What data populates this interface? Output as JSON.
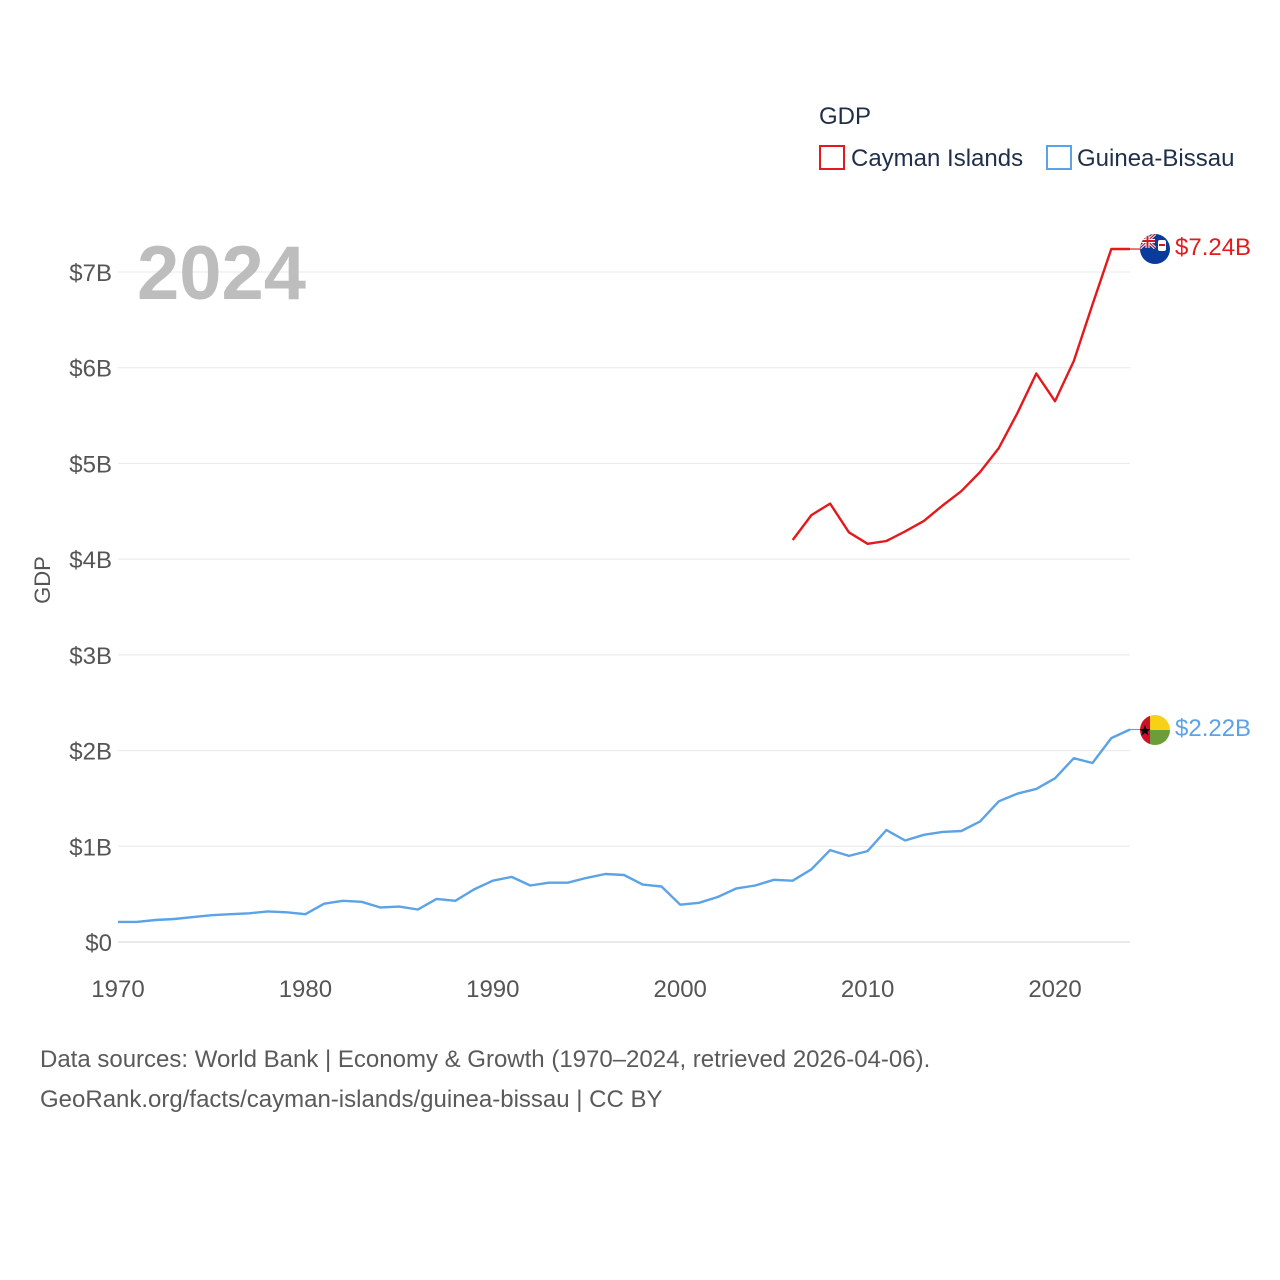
{
  "chart_data": {
    "type": "line",
    "title": "",
    "year_label": "2024",
    "xlabel": "",
    "ylabel": "GDP",
    "xlim": [
      1970,
      2024
    ],
    "ylim": [
      0,
      7.24
    ],
    "x_ticks": [
      1970,
      1980,
      1990,
      2000,
      2010,
      2020
    ],
    "x_tick_labels": [
      "1970",
      "1980",
      "1990",
      "2000",
      "2010",
      "2020"
    ],
    "y_ticks": [
      0,
      1,
      2,
      3,
      4,
      5,
      6,
      7
    ],
    "y_tick_labels": [
      "$0",
      "$1B",
      "$2B",
      "$3B",
      "$4B",
      "$5B",
      "$6B",
      "$7B"
    ],
    "legend": {
      "title": "GDP",
      "position": "top-right"
    },
    "units": "billions of US dollars",
    "series": [
      {
        "name": "Cayman Islands",
        "color": "#e31a1c",
        "end_label": "$7.24B",
        "flag_icon": "cayman-islands-flag-icon",
        "x": [
          2006,
          2007,
          2008,
          2009,
          2010,
          2011,
          2012,
          2013,
          2014,
          2015,
          2016,
          2017,
          2018,
          2019,
          2020,
          2021,
          2022,
          2023,
          2024
        ],
        "values": [
          4.2,
          4.46,
          4.58,
          4.28,
          4.16,
          4.19,
          4.29,
          4.4,
          4.56,
          4.71,
          4.91,
          5.16,
          5.53,
          5.94,
          5.65,
          6.07,
          6.66,
          7.24,
          7.24
        ]
      },
      {
        "name": "Guinea-Bissau",
        "color": "#5ba3e6",
        "end_label": "$2.22B",
        "flag_icon": "guinea-bissau-flag-icon",
        "x": [
          1970,
          1971,
          1972,
          1973,
          1974,
          1975,
          1976,
          1977,
          1978,
          1979,
          1980,
          1981,
          1982,
          1983,
          1984,
          1985,
          1986,
          1987,
          1988,
          1989,
          1990,
          1991,
          1992,
          1993,
          1994,
          1995,
          1996,
          1997,
          1998,
          1999,
          2000,
          2001,
          2002,
          2003,
          2004,
          2005,
          2006,
          2007,
          2008,
          2009,
          2010,
          2011,
          2012,
          2013,
          2014,
          2015,
          2016,
          2017,
          2018,
          2019,
          2020,
          2021,
          2022,
          2023,
          2024
        ],
        "values": [
          0.21,
          0.21,
          0.23,
          0.24,
          0.26,
          0.28,
          0.29,
          0.3,
          0.32,
          0.31,
          0.29,
          0.4,
          0.43,
          0.42,
          0.36,
          0.37,
          0.34,
          0.45,
          0.43,
          0.55,
          0.64,
          0.68,
          0.59,
          0.62,
          0.62,
          0.67,
          0.71,
          0.7,
          0.6,
          0.58,
          0.39,
          0.41,
          0.47,
          0.56,
          0.59,
          0.65,
          0.64,
          0.76,
          0.96,
          0.9,
          0.95,
          1.17,
          1.06,
          1.12,
          1.15,
          1.16,
          1.26,
          1.47,
          1.55,
          1.6,
          1.71,
          1.92,
          1.87,
          2.13,
          2.22
        ]
      }
    ]
  },
  "footer": {
    "line1": "Data sources: World Bank | Economy & Growth (1970–2024, retrieved 2026-04-06).",
    "line2": "GeoRank.org/facts/cayman-islands/guinea-bissau | CC BY"
  }
}
